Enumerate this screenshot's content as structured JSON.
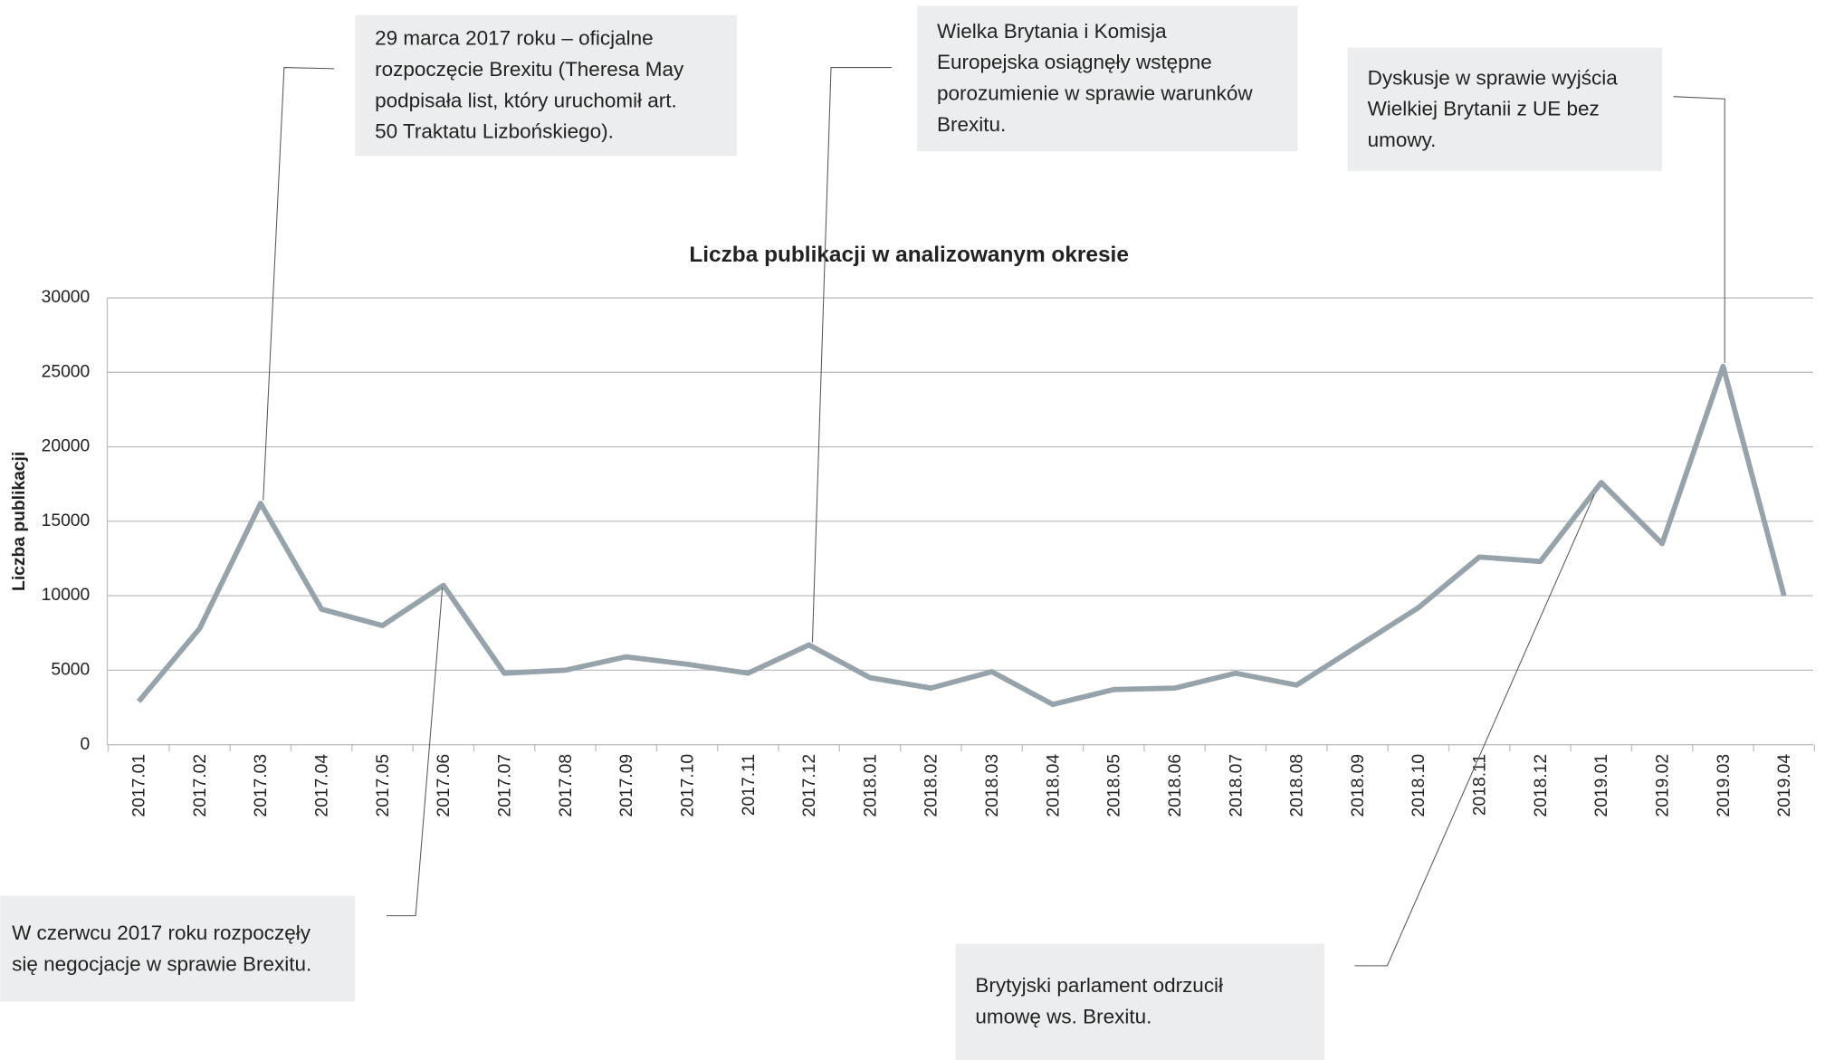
{
  "chart_data": {
    "type": "line",
    "title": "Liczba publikacji  w analizowanym okresie",
    "y_label": "Liczba publikacji",
    "categories": [
      "2017.01",
      "2017.02",
      "2017.03",
      "2017.04",
      "2017.05",
      "2017.06",
      "2017.07",
      "2017.08",
      "2017.09",
      "2017.10",
      "2017.11",
      "2017.12",
      "2018.01",
      "2018.02",
      "2018.03",
      "2018.04",
      "2018.05",
      "2018.06",
      "2018.07",
      "2018.08",
      "2018.09",
      "2018.10",
      "2018.11",
      "2018.12",
      "2019.01",
      "2019.02",
      "2019.03",
      "2019.04"
    ],
    "series": [
      {
        "name": "Liczba publikacji",
        "color": "#97a3ab",
        "values": [
          2900,
          7800,
          16200,
          9100,
          8000,
          10700,
          4800,
          5000,
          5900,
          5400,
          4800,
          6700,
          4500,
          3800,
          4900,
          2700,
          3700,
          3800,
          4800,
          4000,
          6600,
          9200,
          12600,
          12300,
          17600,
          13500,
          25400,
          10000
        ]
      }
    ],
    "ylim": [
      0,
      30000
    ],
    "yticks": [
      0,
      5000,
      10000,
      15000,
      20000,
      25000,
      30000
    ],
    "grid": true,
    "annotations": [
      [
        "29 marca 2017 roku – oficjalne",
        "rozpoczęcie Brexitu (Theresa May",
        "podpisała list, który uruchomił art.",
        "50 Traktatu Lizbońskiego)."
      ],
      [
        "Wielka Brytania i Komisja",
        "Europejska osiągnęły wstępne",
        "porozumienie w sprawie warunków",
        "Brexitu."
      ],
      [
        "Dyskusje w sprawie wyjścia",
        "Wielkiej Brytanii z UE bez",
        "umowy."
      ],
      [
        "W czerwcu 2017 roku rozpoczęły",
        "się negocjacje w sprawie Brexitu."
      ],
      [
        "Brytyjski parlament odrzucił",
        "umowę ws. Brexitu."
      ]
    ]
  }
}
